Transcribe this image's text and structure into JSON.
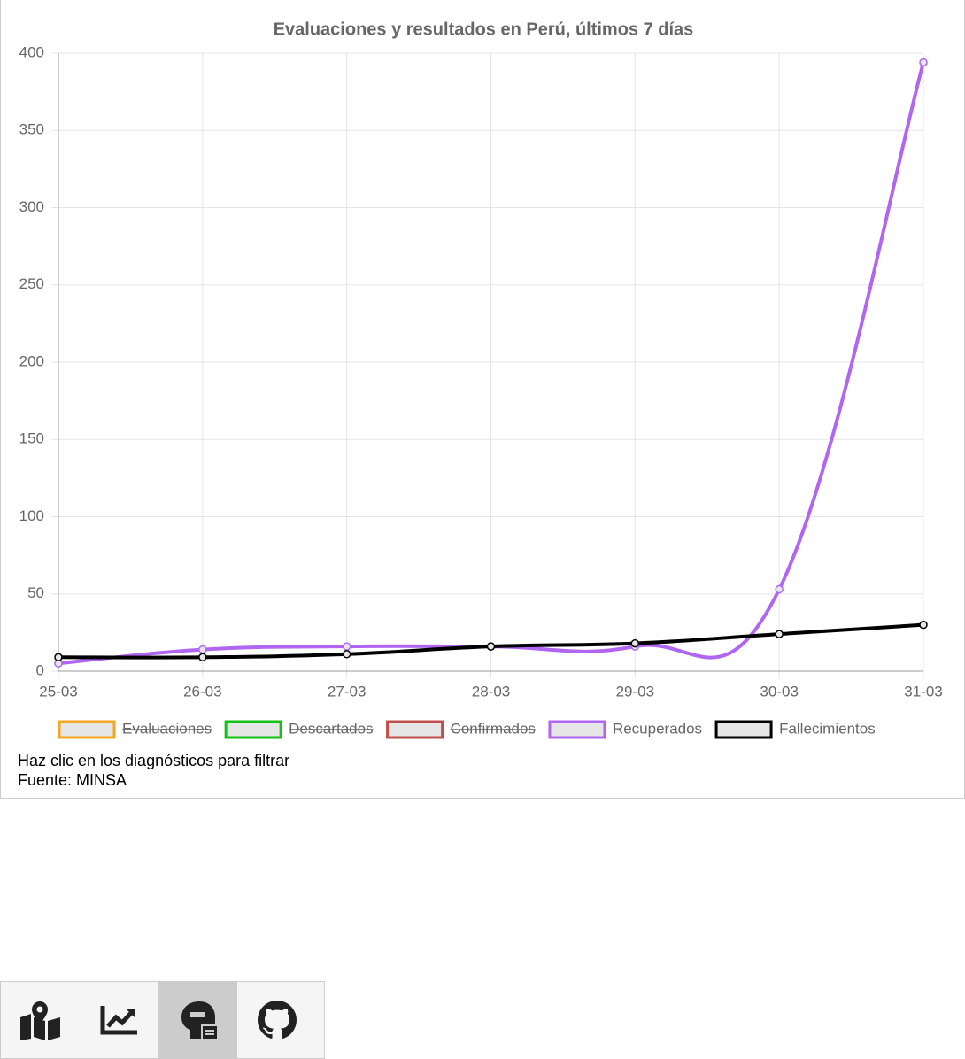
{
  "chart_data": {
    "type": "line",
    "title": "Evaluaciones y resultados en Perú, últimos 7 días",
    "categories": [
      "25-03",
      "26-03",
      "27-03",
      "28-03",
      "29-03",
      "30-03",
      "31-03"
    ],
    "ylim": [
      0,
      400
    ],
    "yticks": [
      0,
      50,
      100,
      150,
      200,
      250,
      300,
      350,
      400
    ],
    "grid": true,
    "legend": "bottom",
    "series": [
      {
        "name": "Evaluaciones",
        "color": "#f5a623",
        "hidden": true
      },
      {
        "name": "Descartados",
        "color": "#16c016",
        "hidden": true
      },
      {
        "name": "Confirmados",
        "color": "#c0504d",
        "hidden": true
      },
      {
        "name": "Recuperados",
        "color": "#b066f0",
        "values": [
          5,
          14,
          16,
          16,
          16,
          53,
          394
        ]
      },
      {
        "name": "Fallecimientos",
        "color": "#000000",
        "values": [
          9,
          9,
          11,
          16,
          18,
          24,
          30
        ]
      }
    ]
  },
  "footer": [
    "Haz clic en los diagnósticos para filtrar",
    "Fuente: MINSA"
  ]
}
